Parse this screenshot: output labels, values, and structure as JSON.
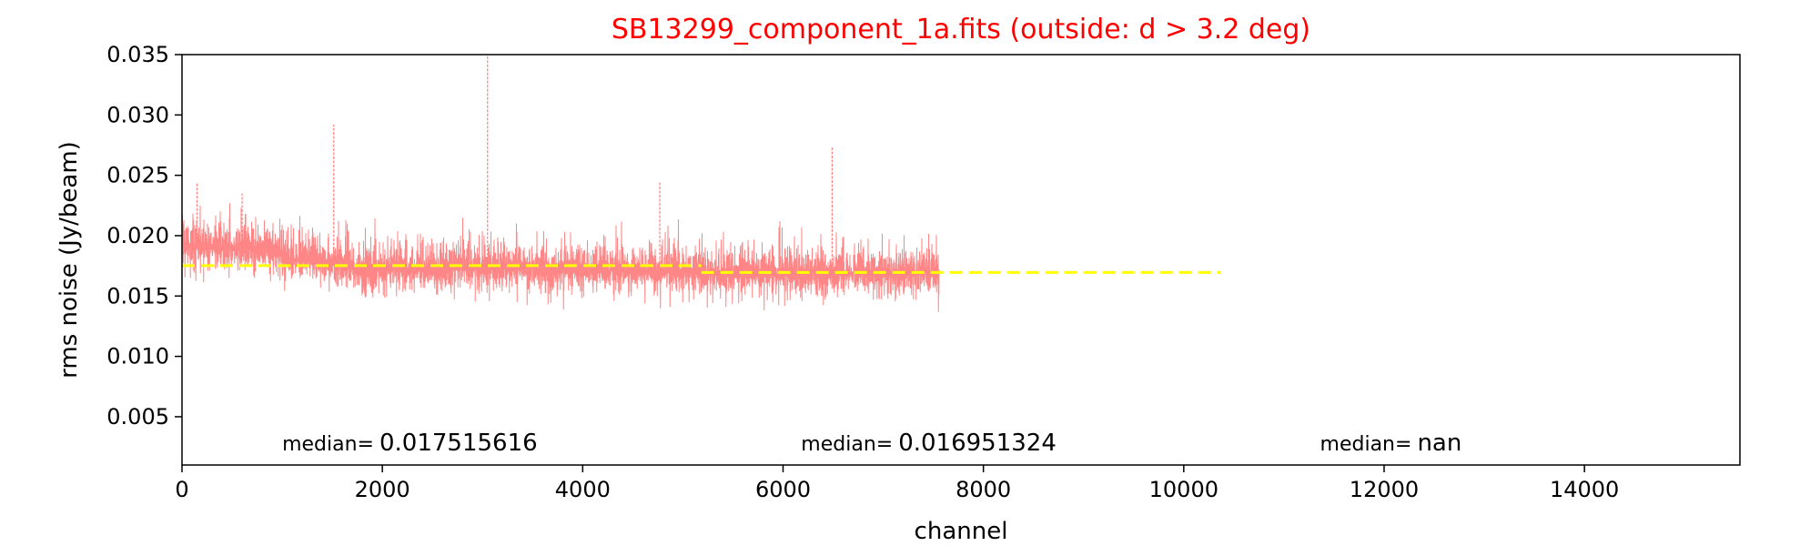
{
  "chart_data": {
    "type": "line",
    "title": "SB13299_component_1a.fits (outside: d > 3.2 deg)",
    "title_color": "#ff0000",
    "xlabel": "channel",
    "ylabel": "rms noise (Jy/beam)",
    "xlim": [
      0,
      15552
    ],
    "ylim": [
      0.001,
      0.035
    ],
    "xticks": [
      0,
      2000,
      4000,
      6000,
      8000,
      10000,
      12000,
      14000
    ],
    "xtick_labels": [
      "0",
      "2000",
      "4000",
      "6000",
      "8000",
      "10000",
      "12000",
      "14000"
    ],
    "yticks": [
      0.005,
      0.01,
      0.015,
      0.02,
      0.025,
      0.03,
      0.035
    ],
    "ytick_labels": [
      "0.005",
      "0.010",
      "0.015",
      "0.020",
      "0.025",
      "0.030",
      "0.035"
    ],
    "grid": false,
    "series": [
      {
        "kind": "noise",
        "color": "#ff8080",
        "x_range": [
          0,
          7560
        ],
        "base_segments": [
          {
            "x": [
              0,
              300
            ],
            "value": [
              0.019,
              0.019
            ]
          },
          {
            "x": [
              300,
              1000
            ],
            "value": [
              0.019,
              0.0188
            ]
          },
          {
            "x": [
              1000,
              1700
            ],
            "value": [
              0.018,
              0.0178
            ]
          },
          {
            "x": [
              1700,
              3600
            ],
            "value": [
              0.0172,
              0.0174
            ]
          },
          {
            "x": [
              3600,
              5200
            ],
            "value": [
              0.0172,
              0.017
            ]
          },
          {
            "x": [
              5200,
              7560
            ],
            "value": [
              0.0168,
              0.017
            ]
          }
        ],
        "spread": 0.0012,
        "spikes": [
          {
            "x": 1515,
            "y": 0.0292
          },
          {
            "x": 3050,
            "y": 0.035
          },
          {
            "x": 4770,
            "y": 0.0244
          },
          {
            "x": 6490,
            "y": 0.0273
          },
          {
            "x": 150,
            "y": 0.0243
          },
          {
            "x": 600,
            "y": 0.0235
          }
        ]
      },
      {
        "kind": "median",
        "color": "#ffff00",
        "style": "dashed",
        "segments": [
          {
            "x": [
              0,
              5184
            ],
            "y": 0.017515616
          },
          {
            "x": [
              5184,
              10368
            ],
            "y": 0.016951324
          }
        ]
      }
    ],
    "annotations": [
      {
        "label": "median=",
        "value": "0.017515616",
        "x": 1000,
        "y": 0.0028
      },
      {
        "label": "median=",
        "value": "0.016951324",
        "x": 6180,
        "y": 0.0028
      },
      {
        "label": "median=",
        "value": "nan",
        "x": 11360,
        "y": 0.0028
      }
    ]
  }
}
